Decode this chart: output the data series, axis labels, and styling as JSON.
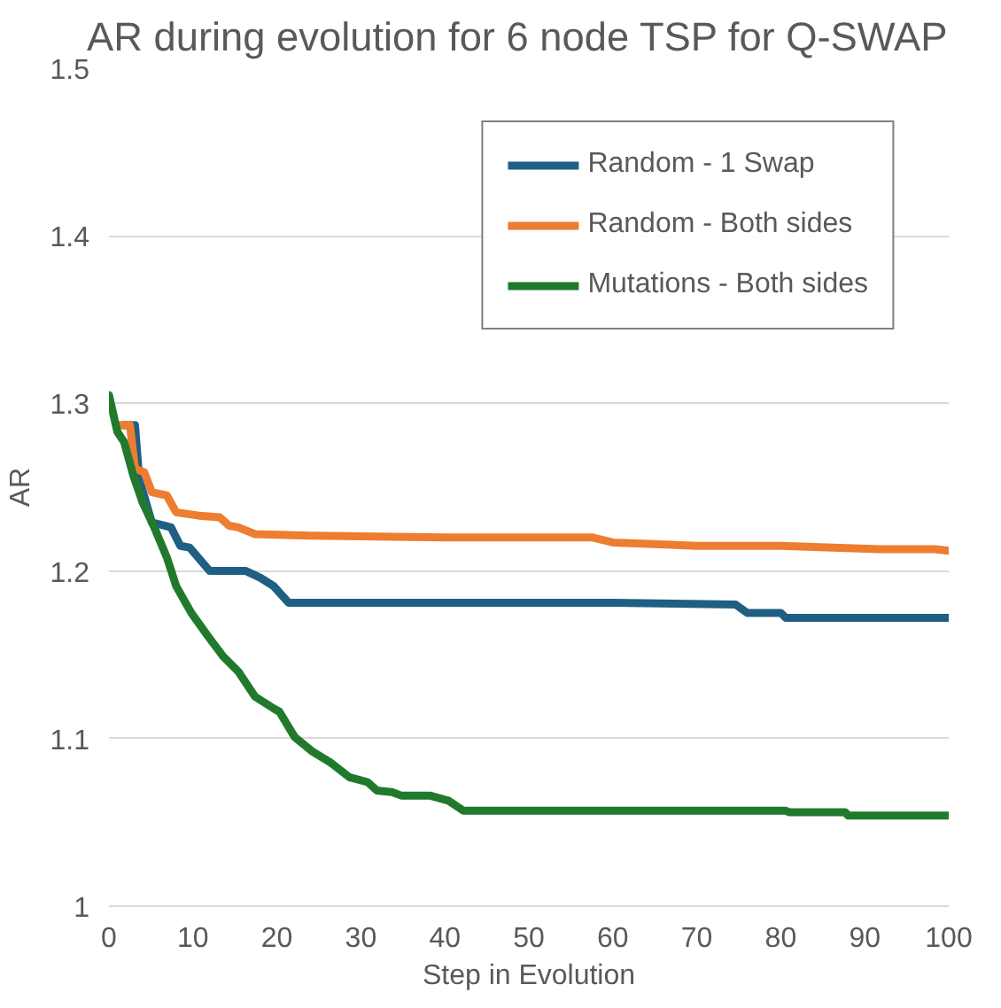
{
  "chart_data": {
    "type": "line",
    "title": "AR during evolution for 6 node TSP for Q-SWAP",
    "xlabel": "Step in Evolution",
    "ylabel": "AR",
    "xlim": [
      0,
      100
    ],
    "xticks": [
      0,
      10,
      20,
      30,
      40,
      50,
      60,
      70,
      80,
      90,
      100
    ],
    "ylim": [
      1,
      1.5
    ],
    "yticks": [
      1,
      1.1,
      1.2,
      1.3,
      1.4,
      1.5
    ],
    "grid": "y",
    "legend": "top right",
    "line_style": "solid",
    "marker": "none",
    "series": [
      {
        "name": "Random - 1 Swap",
        "color": "#1f5f84",
        "x": [
          1.6,
          3.1,
          3.6,
          5.1,
          7.4,
          8.5,
          9.6,
          12,
          16.3,
          18,
          19.6,
          21.4,
          40,
          60,
          74.6,
          76,
          80,
          80.6,
          100
        ],
        "values": [
          1.287,
          1.287,
          1.255,
          1.229,
          1.226,
          1.215,
          1.214,
          1.2,
          1.2,
          1.196,
          1.191,
          1.181,
          1.181,
          1.181,
          1.18,
          1.175,
          1.175,
          1.172,
          1.172
        ]
      },
      {
        "name": "Random - Both sides",
        "color": "#ed7d31",
        "x": [
          1.3,
          2.5,
          3.1,
          4.2,
          5.1,
          6.9,
          8,
          10.7,
          13.2,
          14.3,
          15.4,
          17.4,
          24,
          40,
          57.6,
          60,
          70,
          80,
          91.7,
          98.4,
          100
        ],
        "values": [
          1.287,
          1.287,
          1.261,
          1.259,
          1.247,
          1.245,
          1.235,
          1.233,
          1.232,
          1.227,
          1.226,
          1.222,
          1.221,
          1.22,
          1.22,
          1.217,
          1.215,
          1.215,
          1.213,
          1.213,
          1.212
        ]
      },
      {
        "name": "Mutations - Both sides",
        "color": "#217a2c",
        "x": [
          0,
          1,
          1.8,
          2.9,
          4,
          5.4,
          6.9,
          8,
          9.8,
          11.8,
          13.6,
          15.4,
          17.4,
          19.6,
          20.3,
          22.1,
          24.3,
          26.3,
          28.6,
          30.8,
          31.9,
          33.7,
          34.8,
          38.2,
          40.4,
          42.2,
          60,
          80.6,
          81,
          87.7,
          88,
          100
        ],
        "values": [
          1.305,
          1.283,
          1.277,
          1.257,
          1.241,
          1.226,
          1.208,
          1.191,
          1.175,
          1.161,
          1.149,
          1.14,
          1.125,
          1.118,
          1.116,
          1.101,
          1.092,
          1.086,
          1.077,
          1.074,
          1.069,
          1.068,
          1.066,
          1.066,
          1.063,
          1.057,
          1.057,
          1.057,
          1.056,
          1.056,
          1.054,
          1.054
        ]
      }
    ]
  }
}
